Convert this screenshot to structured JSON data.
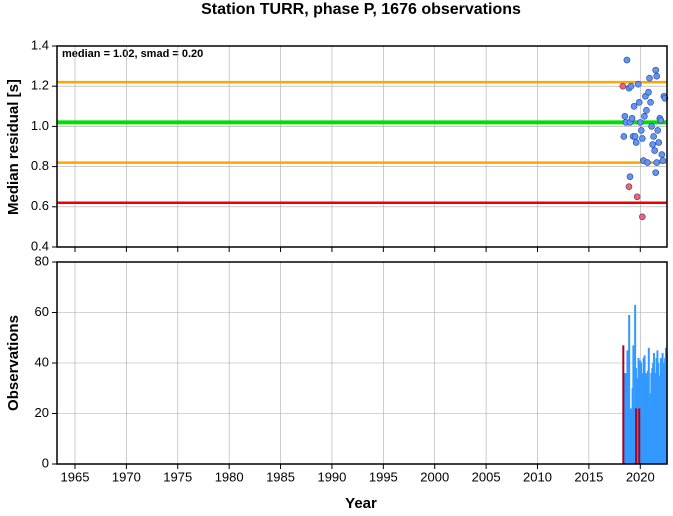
{
  "chart_data": [
    {
      "type": "scatter",
      "title": "Station TURR, phase P, 1676 observations",
      "ylabel": "Median residual [s]",
      "annotation": "median = 1.02, smad = 0.20",
      "xlim": [
        1963.25,
        2022.6
      ],
      "xticks": [
        1965,
        1970,
        1975,
        1980,
        1985,
        1990,
        1995,
        2000,
        2005,
        2010,
        2015,
        2020
      ],
      "ylim": [
        0.4,
        1.4
      ],
      "yticks": [
        0.4,
        0.6,
        0.8,
        {
          "value": 1,
          "label": "1.0"
        },
        1.2,
        1.4
      ],
      "grid": true,
      "reference_lines": [
        {
          "value": 1.22,
          "color": "#ffa500"
        },
        {
          "value": 1.02,
          "color": "#00e000"
        },
        {
          "value": 0.82,
          "color": "#ffa500"
        },
        {
          "value": 0.62,
          "color": "#ee0000"
        }
      ],
      "series": [
        {
          "color": "#6495ed",
          "x": [
            2018.7,
            2018.9,
            2019.1,
            2018.5,
            2018.6,
            2018.4,
            2019.0,
            2019.2,
            2019.3,
            2019.5,
            2019.0,
            2019.8,
            2019.9,
            2020.0,
            2020.1,
            2020.2,
            2020.3,
            2020.4,
            2020.5,
            2020.6,
            2020.7,
            2020.8,
            2020.9,
            2021.0,
            2021.1,
            2021.2,
            2021.3,
            2021.4,
            2021.5,
            2021.6,
            2021.7,
            2021.8,
            2021.9,
            2022.0,
            2022.1,
            2022.2,
            2022.3,
            2022.4,
            2021.5,
            2021.6,
            2019.6,
            2019.4
          ],
          "values": [
            1.33,
            1.19,
            1.2,
            1.05,
            1.02,
            0.95,
            1.02,
            1.04,
            0.95,
            0.95,
            0.75,
            1.21,
            1.12,
            1.02,
            0.98,
            0.94,
            0.83,
            1.05,
            1.15,
            1.08,
            0.82,
            1.17,
            1.24,
            1.12,
            1.0,
            0.91,
            0.95,
            0.88,
            1.28,
            1.25,
            0.98,
            0.92,
            1.04,
            1.03,
            0.86,
            0.83,
            1.15,
            1.14,
            0.77,
            0.82,
            0.92,
            1.1
          ]
        },
        {
          "color": "#ff6060",
          "x": [
            2018.3,
            2018.9,
            2019.7,
            2020.2
          ],
          "values": [
            1.2,
            0.7,
            0.65,
            0.55
          ]
        }
      ]
    },
    {
      "type": "bar",
      "ylabel": "Observations",
      "xlabel": "Year",
      "xlim": [
        1963.25,
        2022.6
      ],
      "xticks": [
        1965,
        1970,
        1975,
        1980,
        1985,
        1990,
        1995,
        2000,
        2005,
        2010,
        2015,
        2020
      ],
      "ylim": [
        0,
        80
      ],
      "yticks": [
        0,
        20,
        40,
        60,
        80
      ],
      "grid": true,
      "series": [
        {
          "color": "#3399ff",
          "x": [
            2018.5,
            2018.58,
            2018.67,
            2018.75,
            2018.83,
            2018.92,
            2019.0,
            2019.08,
            2019.17,
            2019.25,
            2019.33,
            2019.42,
            2019.5,
            2019.58,
            2019.67,
            2019.75,
            2019.83,
            2019.92,
            2020.0,
            2020.08,
            2020.17,
            2020.25,
            2020.33,
            2020.42,
            2020.5,
            2020.58,
            2020.67,
            2020.75,
            2020.83,
            2020.92,
            2021.0,
            2021.08,
            2021.17,
            2021.25,
            2021.33,
            2021.42,
            2021.5,
            2021.58,
            2021.67,
            2021.75,
            2021.83,
            2021.92,
            2022.0,
            2022.08,
            2022.17,
            2022.25,
            2022.33,
            2022.42,
            2022.5,
            2022.58
          ],
          "values": [
            36,
            36,
            12,
            45,
            44,
            59,
            22,
            18,
            22,
            30,
            47,
            22,
            63,
            38,
            30,
            34,
            42,
            27,
            41,
            40,
            20,
            36,
            42,
            43,
            30,
            36,
            28,
            37,
            46,
            22,
            28,
            36,
            38,
            40,
            44,
            32,
            36,
            42,
            45,
            40,
            35,
            30,
            42,
            38,
            44,
            36,
            40,
            42,
            46,
            44
          ]
        },
        {
          "color": "#aa0022",
          "x": [
            2018.35,
            2019.6,
            2019.9
          ],
          "values": [
            47,
            22,
            22
          ]
        }
      ]
    }
  ]
}
